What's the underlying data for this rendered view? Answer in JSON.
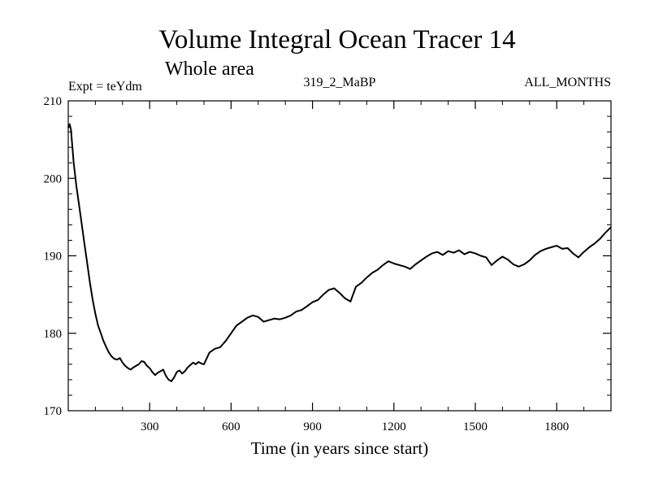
{
  "chart_data": {
    "type": "line",
    "title": "Volume Integral Ocean Tracer 14",
    "subtitle": "Whole area",
    "header_left": "Expt = teYdm",
    "header_center": "319_2_MaBP",
    "header_right": "ALL_MONTHS",
    "xlabel": "Time (in years since start)",
    "ylabel": "",
    "xlim": [
      0,
      2000
    ],
    "ylim": [
      170,
      210
    ],
    "x_ticks": [
      300,
      600,
      900,
      1200,
      1500,
      1800
    ],
    "y_ticks": [
      170,
      180,
      190,
      200,
      210
    ],
    "x_minor_step": 100,
    "y_minor_step": 2,
    "series": [
      {
        "name": "Volume Integral Ocean Tracer 14",
        "x": [
          0,
          5,
          10,
          20,
          30,
          40,
          50,
          60,
          70,
          80,
          90,
          100,
          110,
          120,
          130,
          140,
          150,
          160,
          170,
          180,
          190,
          200,
          210,
          220,
          230,
          240,
          250,
          260,
          270,
          280,
          290,
          300,
          310,
          320,
          330,
          340,
          350,
          360,
          370,
          380,
          390,
          400,
          410,
          420,
          430,
          440,
          450,
          460,
          470,
          480,
          490,
          500,
          520,
          540,
          560,
          580,
          600,
          620,
          640,
          660,
          680,
          700,
          720,
          740,
          760,
          780,
          800,
          820,
          840,
          860,
          880,
          900,
          920,
          940,
          960,
          980,
          1000,
          1020,
          1040,
          1060,
          1080,
          1100,
          1120,
          1140,
          1160,
          1180,
          1200,
          1220,
          1240,
          1260,
          1280,
          1300,
          1320,
          1340,
          1360,
          1380,
          1400,
          1420,
          1440,
          1460,
          1480,
          1500,
          1520,
          1540,
          1560,
          1580,
          1600,
          1620,
          1640,
          1660,
          1680,
          1700,
          1720,
          1740,
          1760,
          1780,
          1800,
          1820,
          1840,
          1860,
          1880,
          1900,
          1920,
          1940,
          1960,
          1980,
          2000
        ],
        "y": [
          206.5,
          207.0,
          206.3,
          202.0,
          199.0,
          196.5,
          194.0,
          191.5,
          189.0,
          186.5,
          184.3,
          182.5,
          181.0,
          180.0,
          179.0,
          178.2,
          177.5,
          177.0,
          176.7,
          176.6,
          176.8,
          176.2,
          175.8,
          175.5,
          175.3,
          175.6,
          175.8,
          176.0,
          176.4,
          176.3,
          175.8,
          175.5,
          175.0,
          174.6,
          174.9,
          175.1,
          175.3,
          174.5,
          174.0,
          173.8,
          174.3,
          175.0,
          175.2,
          174.8,
          175.1,
          175.6,
          175.9,
          176.2,
          176.0,
          176.3,
          176.1,
          176.0,
          177.5,
          178.0,
          178.2,
          179.0,
          180.0,
          181.0,
          181.5,
          182.0,
          182.3,
          182.1,
          181.5,
          181.7,
          181.9,
          181.8,
          182.0,
          182.3,
          182.8,
          183.0,
          183.5,
          184.0,
          184.3,
          185.0,
          185.6,
          185.8,
          185.2,
          184.5,
          184.1,
          186.0,
          186.5,
          187.2,
          187.8,
          188.2,
          188.8,
          189.3,
          189.0,
          188.8,
          188.6,
          188.3,
          188.9,
          189.4,
          189.9,
          190.3,
          190.5,
          190.1,
          190.6,
          190.4,
          190.7,
          190.2,
          190.5,
          190.3,
          190.0,
          189.8,
          188.8,
          189.4,
          189.9,
          189.5,
          188.9,
          188.6,
          188.9,
          189.4,
          190.1,
          190.6,
          190.9,
          191.1,
          191.3,
          190.9,
          191.0,
          190.3,
          189.8,
          190.5,
          191.1,
          191.6,
          192.2,
          193.0,
          193.7
        ]
      }
    ]
  }
}
